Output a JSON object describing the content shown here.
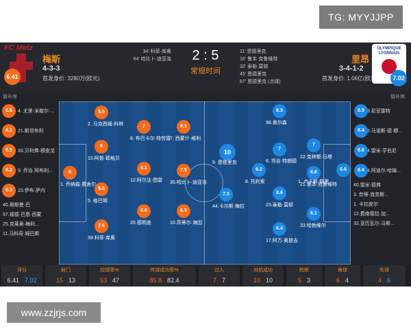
{
  "watermarks": {
    "top": "TG: MYYJJPP",
    "bottom": "www.zzjrjs.com"
  },
  "colors": {
    "home": "#f36b1c",
    "away": "#1e88e5",
    "accent": "#f08a24",
    "pitch": "#1c4f8a"
  },
  "match": {
    "score": "2 : 5",
    "period": "常规时间",
    "home": {
      "logo_text": "FC Metz",
      "name": "梅斯",
      "rating": "6.41",
      "formation": "4-3-3",
      "value_label": "首发身价:",
      "value": "3280万(欧元)",
      "subs_label": "替补席"
    },
    "away": {
      "logo_text_1": "OLYMPIQUE",
      "logo_text_2": "LYONNAIS",
      "name": "里昂",
      "rating": "7.02",
      "formation": "3-4-1-2",
      "value_label": "首发身价:",
      "value": "1.06亿(欧元)",
      "subs_label": "替补席"
    },
    "home_events": [
      "34' 科菲·库奥",
      "64' 哈比卜·迪亚洛"
    ],
    "away_events": [
      "11' 恩德里克",
      "16' 鲁本·克鲁维特",
      "32' 泰勒·莫顿",
      "45' 恩德里克",
      "87' 恩德里克 (点球)"
    ]
  },
  "home_subs": [
    {
      "rating": "6.6",
      "name": "4. 尤里·米歇尔·..."
    },
    {
      "rating": "6.1",
      "name": "21.斯坦布利"
    },
    {
      "rating": "6.5",
      "name": "33.贝利弗·穆皮戈"
    },
    {
      "rating": "6.2",
      "name": "9. 乔治·阿布利..."
    },
    {
      "rating": "6.3",
      "name": "23.伊布·萨内"
    },
    {
      "name": "40.奥斯曼·巴"
    },
    {
      "name": "97.福德·巴恩·西蒙"
    },
    {
      "name": "25.克莱奥·梅利..."
    },
    {
      "name": "11.马科奇·姆巴斯"
    }
  ],
  "away_subs": [
    {
      "rating": "6.9",
      "name": "19.尼亚雷特"
    },
    {
      "rating": "6.4",
      "name": "13.马诺斯·德·穆..."
    },
    {
      "rating": "6.6",
      "name": "14.雷米·亨伯尼"
    },
    {
      "rating": "6.4",
      "name": "34.阿迪尔·哈姆..."
    },
    {
      "name": "40.雷米·德弗"
    },
    {
      "name": "3. 奈蒂·克劳斯..."
    },
    {
      "name": "1. 卡拉皮尔"
    },
    {
      "name": "12.费南德拉·加..."
    },
    {
      "name": "32.亚历瓦尔·马斯..."
    }
  ],
  "home_players": [
    {
      "rating": "6",
      "name": "1. 乔纳森·费舍尔"
    },
    {
      "rating": "5.5",
      "name": "2. 马克西姆·科林"
    },
    {
      "rating": "6",
      "name": "15.阿普·耶格贝"
    },
    {
      "rating": "5.5",
      "name": "5. 格巴明"
    },
    {
      "rating": "7.6",
      "name": "39.科菲·库奥"
    },
    {
      "rating": "7",
      "name": "8. 布巴卡尔·特劳雷"
    },
    {
      "rating": "6.1",
      "name": "12.阿尔法·图雷"
    },
    {
      "rating": "6.6",
      "name": "20.德明盖"
    },
    {
      "rating": "6.1",
      "name": "7. 西蒙什·维利"
    },
    {
      "rating": "7.5",
      "name": "30.哈比卜·迪亚洛"
    },
    {
      "rating": "6.5",
      "name": "10.高蒂尔·海因"
    }
  ],
  "away_players": [
    {
      "rating": "6.6",
      "name": "1. 卢卡斯·佩里"
    },
    {
      "rating": "6.6",
      "name": "21.鲁本·克鲁维特"
    },
    {
      "rating": "7",
      "name": "22.克林顿·马塔"
    },
    {
      "rating": "6.1",
      "name": "33.哈勃维尔"
    },
    {
      "rating": "6.3",
      "name": "98.奥尔森"
    },
    {
      "rating": "7",
      "name": "6. 坦谷·特朗德"
    },
    {
      "rating": "8.6",
      "name": "23.泰勒·莫顿"
    },
    {
      "rating": "6.4",
      "name": "17.阿万·奥普吉"
    },
    {
      "rating": "6.2",
      "name": "8. 托利索"
    },
    {
      "rating": "10",
      "name": "9. 恩德里克"
    },
    {
      "rating": "7.3",
      "name": "44.卡尔斯·梅拉"
    }
  ],
  "stats": [
    {
      "label": "评分",
      "home": "6.41",
      "away": "7.02",
      "away_blue": true
    },
    {
      "label": "射门",
      "home": "15",
      "away": "13"
    },
    {
      "label": "控球率%",
      "home": "53",
      "away": "47"
    },
    {
      "label": "传球成功率%",
      "home": "85.8",
      "away": "82.4"
    },
    {
      "label": "过人",
      "home": "7",
      "away": "7"
    },
    {
      "label": "对抗成功",
      "home": "10",
      "away": "10"
    },
    {
      "label": "抢断",
      "home": "5",
      "away": "3"
    },
    {
      "label": "角球",
      "home": "6",
      "away": "4"
    },
    {
      "label": "失误",
      "home": "4",
      "away": "6",
      "away_blue": true
    }
  ]
}
